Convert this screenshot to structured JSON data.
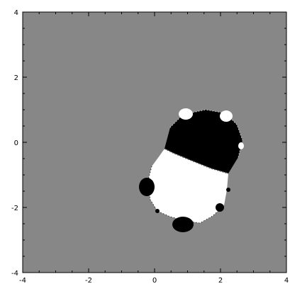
{
  "chart_data": {
    "type": "heatmap",
    "title": "",
    "xlabel": "",
    "ylabel": "",
    "xlim": [
      -4,
      4
    ],
    "ylim": [
      -4,
      4
    ],
    "x_ticks": [
      "-4",
      "-2",
      "0",
      "2",
      "4"
    ],
    "y_ticks": [
      "4",
      "2",
      "0",
      "-2",
      "-4"
    ],
    "grid": false,
    "colors": {
      "background": "#878787",
      "region_dark": "#000000",
      "region_light": "#ffffff",
      "frame": "#000000"
    }
  }
}
